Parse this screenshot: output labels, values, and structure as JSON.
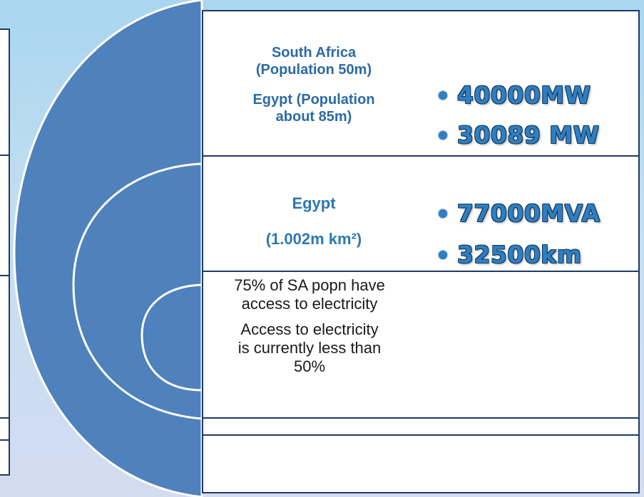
{
  "section1": {
    "label_line1": "South Africa",
    "label_line2": "(Population  50m)",
    "label_line3": "Egypt (Population",
    "label_line4": "about 85m)",
    "bullets": [
      "40000MW",
      "30089 MW"
    ]
  },
  "section2": {
    "label_line1": "Egypt",
    "label_line2": "(1.002m km²)",
    "bullets": [
      "77000MVA",
      "32500km"
    ]
  },
  "section3": {
    "line1": "75% of SA popn have",
    "line2": "access to electricity",
    "line3": "Access to electricity",
    "line4": "is currently less than",
    "line5": "50%"
  },
  "colors": {
    "arc_fill": "#4f81bd",
    "arc_border": "#ffffff",
    "frame": "#1f3b63",
    "accent_text": "#2b78b5",
    "bullet_text": "#2e7fc1"
  }
}
